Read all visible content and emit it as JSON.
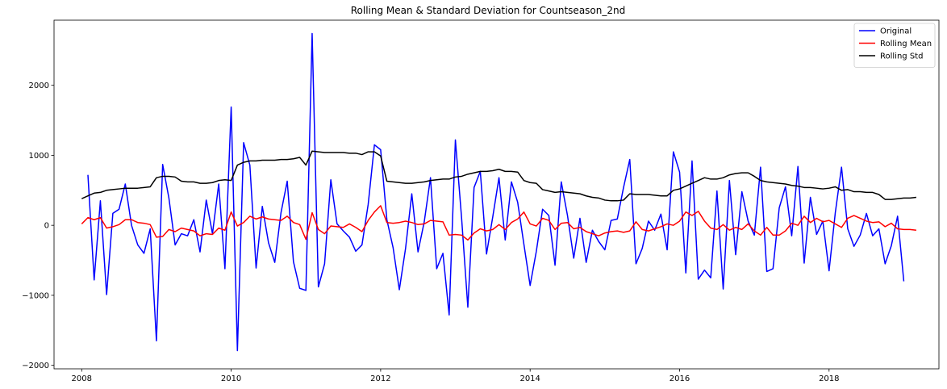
{
  "chart_data": {
    "type": "line",
    "title": "Rolling Mean & Standard Deviation for Countseason_2nd",
    "xlabel": "",
    "ylabel": "",
    "xlim": [
      2007.63,
      2019.47
    ],
    "ylim": [
      -2050,
      2930
    ],
    "x_ticks": [
      2008,
      2010,
      2012,
      2014,
      2016,
      2018
    ],
    "x_tick_labels": [
      "2008",
      "2010",
      "2012",
      "2014",
      "2016",
      "2018"
    ],
    "y_ticks": [
      -2000,
      -1000,
      0,
      1000,
      2000
    ],
    "y_tick_labels": [
      "−2000",
      "−1000",
      "0",
      "1000",
      "2000"
    ],
    "grid": false,
    "legend_position": "top-right",
    "x_start": 2008.0,
    "x_step": 0.0833333,
    "series": [
      {
        "name": "Original",
        "color": "#0000ff",
        "values": [
          null,
          720,
          -780,
          350,
          -990,
          170,
          230,
          590,
          0,
          -280,
          -400,
          -50,
          -1650,
          870,
          390,
          -280,
          -120,
          -150,
          80,
          -380,
          360,
          -120,
          590,
          -620,
          1690,
          -1790,
          1180,
          860,
          -610,
          270,
          -250,
          -530,
          180,
          630,
          -520,
          -900,
          -930,
          2740,
          -880,
          -550,
          650,
          20,
          -80,
          -170,
          -370,
          -280,
          300,
          1150,
          1080,
          80,
          -320,
          -920,
          -330,
          450,
          -380,
          50,
          680,
          -620,
          -400,
          -1280,
          1220,
          100,
          -1170,
          540,
          770,
          -410,
          120,
          680,
          -210,
          620,
          330,
          -270,
          -860,
          -370,
          230,
          140,
          -570,
          620,
          140,
          -470,
          100,
          -530,
          -70,
          -230,
          -350,
          70,
          90,
          540,
          940,
          -550,
          -330,
          60,
          -70,
          160,
          -350,
          1050,
          760,
          -680,
          920,
          -770,
          -640,
          -750,
          490,
          -910,
          640,
          -420,
          480,
          60,
          -140,
          830,
          -660,
          -620,
          250,
          550,
          -150,
          840,
          -540,
          400,
          -130,
          60,
          -650,
          180,
          830,
          -50,
          -300,
          -140,
          170,
          -150,
          -50,
          -550,
          -290,
          130,
          -800
        ]
      },
      {
        "name": "Rolling Mean",
        "color": "#ff0000",
        "values": [
          20,
          110,
          80,
          110,
          -40,
          -20,
          10,
          80,
          80,
          40,
          30,
          10,
          -170,
          -160,
          -60,
          -90,
          -40,
          -60,
          -80,
          -150,
          -120,
          -130,
          -40,
          -70,
          190,
          -10,
          40,
          130,
          90,
          120,
          90,
          80,
          70,
          130,
          40,
          10,
          -200,
          180,
          -60,
          -120,
          -10,
          -20,
          -30,
          20,
          -30,
          -90,
          70,
          190,
          280,
          40,
          30,
          40,
          60,
          40,
          10,
          20,
          70,
          60,
          50,
          -140,
          -130,
          -140,
          -210,
          -110,
          -50,
          -80,
          -60,
          10,
          -60,
          40,
          90,
          190,
          20,
          -10,
          100,
          70,
          -60,
          30,
          40,
          -50,
          -30,
          -90,
          -120,
          -150,
          -110,
          -90,
          -80,
          -100,
          -80,
          50,
          -60,
          -80,
          -50,
          -20,
          20,
          0,
          60,
          190,
          140,
          200,
          60,
          -40,
          -60,
          10,
          -70,
          -30,
          -60,
          20,
          -80,
          -140,
          -30,
          -140,
          -140,
          -80,
          30,
          0,
          130,
          40,
          100,
          50,
          70,
          20,
          -30,
          100,
          140,
          100,
          60,
          40,
          50,
          -20,
          30,
          -50,
          -60,
          -60,
          -70
        ]
      },
      {
        "name": "Rolling Std",
        "color": "#000000",
        "values": [
          380,
          420,
          460,
          470,
          500,
          510,
          520,
          530,
          530,
          530,
          540,
          550,
          680,
          700,
          700,
          690,
          630,
          620,
          620,
          600,
          600,
          610,
          640,
          650,
          640,
          860,
          900,
          920,
          920,
          930,
          930,
          930,
          940,
          940,
          950,
          970,
          860,
          1060,
          1050,
          1040,
          1040,
          1040,
          1040,
          1030,
          1030,
          1010,
          1050,
          1050,
          990,
          630,
          620,
          610,
          600,
          600,
          610,
          620,
          640,
          650,
          660,
          660,
          690,
          700,
          730,
          750,
          770,
          770,
          780,
          800,
          770,
          770,
          760,
          640,
          610,
          600,
          510,
          490,
          470,
          480,
          470,
          460,
          450,
          420,
          400,
          390,
          360,
          350,
          350,
          360,
          450,
          440,
          440,
          440,
          430,
          420,
          420,
          500,
          520,
          560,
          600,
          640,
          680,
          660,
          660,
          680,
          720,
          740,
          750,
          750,
          700,
          640,
          620,
          610,
          600,
          590,
          570,
          560,
          540,
          540,
          530,
          520,
          530,
          550,
          500,
          510,
          480,
          480,
          470,
          470,
          440,
          370,
          370,
          380,
          390,
          390,
          400
        ]
      }
    ]
  }
}
